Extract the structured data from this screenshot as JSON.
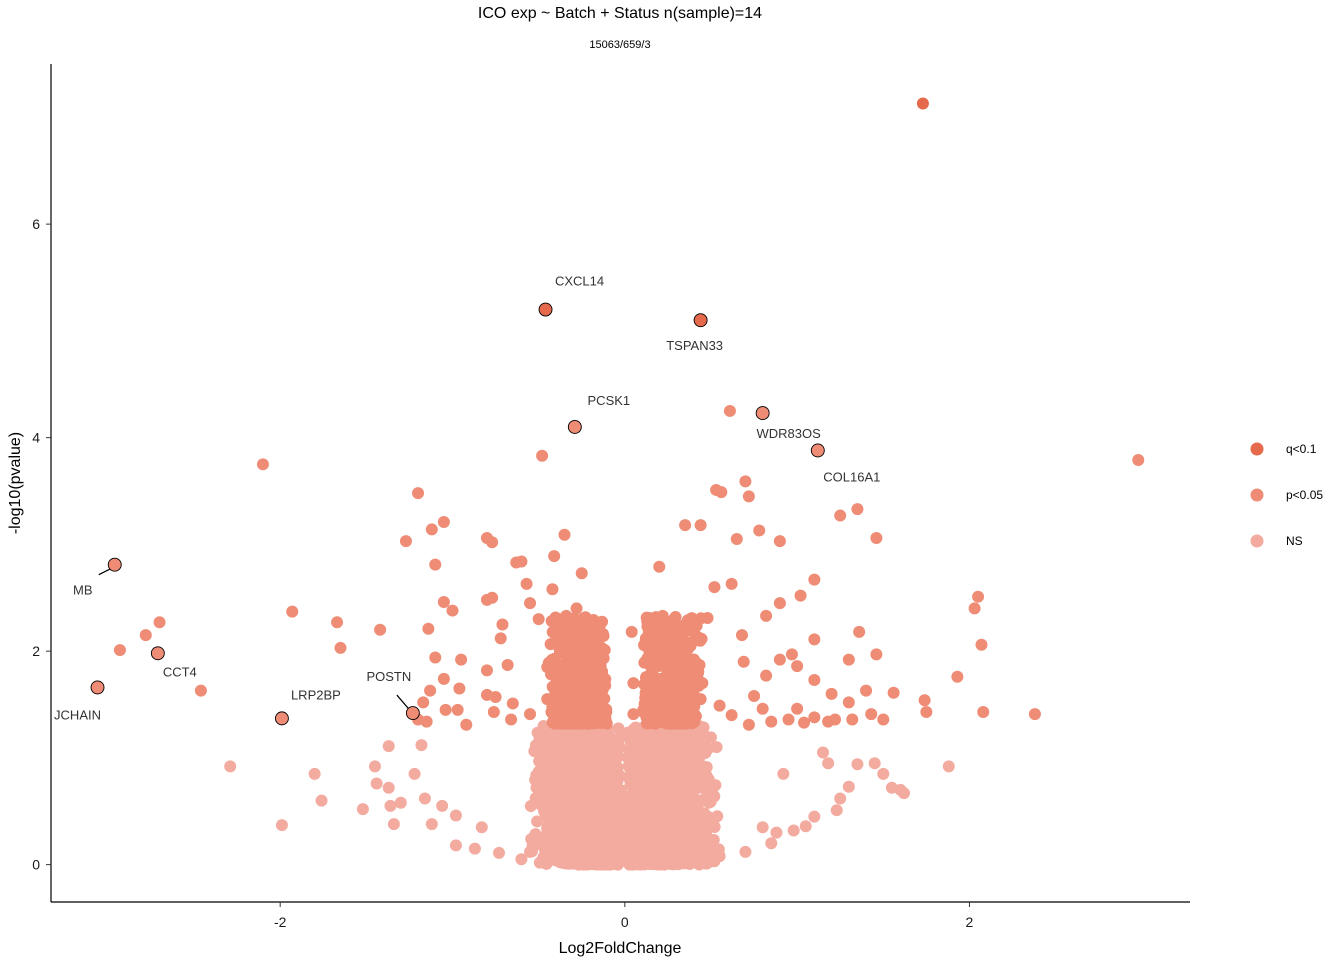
{
  "chart_data": {
    "type": "scatter",
    "title": "ICO exp ~ Batch + Status n(sample)=14",
    "subtitle": "15063/659/3",
    "xlabel": "Log2FoldChange",
    "ylabel": "-log10(pvalue)",
    "xlim": [
      -3.33,
      3.28
    ],
    "ylim": [
      -0.35,
      7.5
    ],
    "x_ticks": [
      -2,
      0,
      2
    ],
    "x_tick_labels": [
      "-2",
      "0",
      "2"
    ],
    "y_ticks": [
      0,
      2,
      4,
      6
    ],
    "y_tick_labels": [
      "0",
      "2",
      "4",
      "6"
    ],
    "grid": false,
    "legend_position": "right",
    "legend": [
      {
        "name": "q<0.1",
        "color": "#e56a4b"
      },
      {
        "name": "p<0.05",
        "color": "#ee8c76"
      },
      {
        "name": "NS",
        "color": "#f3aba0"
      }
    ],
    "series": [
      {
        "name": "q<0.1",
        "color": "#e56a4b",
        "points": [
          [
            1.73,
            7.13
          ]
        ]
      },
      {
        "name": "p<0.05",
        "color": "#ee8c76",
        "points": [
          [
            0.61,
            4.25
          ],
          [
            -0.48,
            3.83
          ],
          [
            -2.1,
            3.75
          ],
          [
            2.98,
            3.79
          ],
          [
            0.7,
            3.59
          ],
          [
            0.53,
            3.51
          ],
          [
            0.56,
            3.49
          ],
          [
            0.72,
            3.45
          ],
          [
            -1.2,
            3.48
          ],
          [
            0.35,
            3.18
          ],
          [
            0.44,
            3.18
          ],
          [
            0.78,
            3.13
          ],
          [
            1.35,
            3.33
          ],
          [
            1.25,
            3.27
          ],
          [
            -1.05,
            3.21
          ],
          [
            -1.12,
            3.14
          ],
          [
            -0.35,
            3.09
          ],
          [
            -0.8,
            3.06
          ],
          [
            -0.77,
            3.02
          ],
          [
            -1.27,
            3.03
          ],
          [
            0.65,
            3.05
          ],
          [
            0.9,
            3.03
          ],
          [
            1.46,
            3.06
          ],
          [
            -0.63,
            2.83
          ],
          [
            -0.6,
            2.84
          ],
          [
            -0.41,
            2.89
          ],
          [
            0.2,
            2.79
          ],
          [
            -1.1,
            2.81
          ],
          [
            -0.25,
            2.73
          ],
          [
            1.1,
            2.67
          ],
          [
            -0.57,
            2.63
          ],
          [
            0.52,
            2.6
          ],
          [
            0.62,
            2.63
          ],
          [
            2.05,
            2.51
          ],
          [
            -0.42,
            2.58
          ],
          [
            -0.77,
            2.5
          ],
          [
            -0.8,
            2.48
          ],
          [
            1.02,
            2.52
          ],
          [
            -1.05,
            2.46
          ],
          [
            -1.0,
            2.38
          ],
          [
            -0.55,
            2.45
          ],
          [
            0.9,
            2.45
          ],
          [
            -0.28,
            2.4
          ],
          [
            2.03,
            2.4
          ],
          [
            -1.93,
            2.37
          ],
          [
            0.82,
            2.33
          ],
          [
            0.48,
            2.31
          ],
          [
            0.22,
            2.33
          ],
          [
            0.13,
            2.28
          ],
          [
            -0.5,
            2.3
          ],
          [
            -0.34,
            2.33
          ],
          [
            -0.71,
            2.25
          ],
          [
            -1.67,
            2.27
          ],
          [
            -2.7,
            2.27
          ],
          [
            -1.14,
            2.21
          ],
          [
            -1.42,
            2.2
          ],
          [
            -0.18,
            2.21
          ],
          [
            0.04,
            2.18
          ],
          [
            1.36,
            2.18
          ],
          [
            -2.78,
            2.15
          ],
          [
            0.68,
            2.15
          ],
          [
            -0.72,
            2.12
          ],
          [
            1.1,
            2.11
          ],
          [
            2.07,
            2.06
          ],
          [
            -1.65,
            2.03
          ],
          [
            -2.93,
            2.01
          ],
          [
            0.97,
            1.97
          ],
          [
            1.46,
            1.97
          ],
          [
            -1.1,
            1.94
          ],
          [
            -0.95,
            1.92
          ],
          [
            0.9,
            1.92
          ],
          [
            1.3,
            1.92
          ],
          [
            -0.68,
            1.87
          ],
          [
            0.69,
            1.9
          ],
          [
            0.15,
            1.86
          ],
          [
            1.0,
            1.86
          ],
          [
            -0.8,
            1.82
          ],
          [
            1.93,
            1.76
          ],
          [
            -1.05,
            1.74
          ],
          [
            0.82,
            1.77
          ],
          [
            -0.3,
            1.75
          ],
          [
            0.05,
            1.7
          ],
          [
            1.1,
            1.73
          ],
          [
            -2.46,
            1.63
          ],
          [
            -0.96,
            1.65
          ],
          [
            -1.13,
            1.63
          ],
          [
            -0.8,
            1.59
          ],
          [
            0.33,
            1.6
          ],
          [
            1.2,
            1.6
          ],
          [
            1.4,
            1.63
          ],
          [
            1.56,
            1.61
          ],
          [
            -0.75,
            1.57
          ],
          [
            -0.45,
            1.55
          ],
          [
            0.44,
            1.55
          ],
          [
            0.75,
            1.58
          ],
          [
            1.3,
            1.52
          ],
          [
            1.74,
            1.54
          ],
          [
            -1.17,
            1.52
          ],
          [
            -0.65,
            1.51
          ],
          [
            0.13,
            1.51
          ],
          [
            0.55,
            1.49
          ],
          [
            0.8,
            1.46
          ],
          [
            1.0,
            1.46
          ],
          [
            2.08,
            1.43
          ],
          [
            1.75,
            1.43
          ],
          [
            2.38,
            1.41
          ],
          [
            -0.97,
            1.45
          ],
          [
            -1.04,
            1.45
          ],
          [
            -0.76,
            1.43
          ],
          [
            -0.55,
            1.41
          ],
          [
            -0.3,
            1.41
          ],
          [
            -0.2,
            1.44
          ],
          [
            0.05,
            1.41
          ],
          [
            0.3,
            1.42
          ],
          [
            0.62,
            1.4
          ],
          [
            1.1,
            1.38
          ],
          [
            1.22,
            1.36
          ],
          [
            1.43,
            1.41
          ],
          [
            -1.15,
            1.34
          ],
          [
            -1.2,
            1.36
          ],
          [
            -0.66,
            1.36
          ],
          [
            0.85,
            1.34
          ],
          [
            0.95,
            1.36
          ],
          [
            1.04,
            1.33
          ],
          [
            1.18,
            1.34
          ],
          [
            1.32,
            1.36
          ],
          [
            1.5,
            1.36
          ],
          [
            -0.92,
            1.31
          ],
          [
            0.72,
            1.31
          ],
          [
            -0.42,
            1.48
          ],
          [
            -0.35,
            1.72
          ],
          [
            -0.25,
            1.9
          ],
          [
            -0.18,
            2.0
          ],
          [
            -0.3,
            1.95
          ],
          [
            0.25,
            1.9
          ],
          [
            0.35,
            1.95
          ],
          [
            0.3,
            2.1
          ],
          [
            0.4,
            1.8
          ],
          [
            0.18,
            1.65
          ],
          [
            0.28,
            1.5
          ],
          [
            0.38,
            1.45
          ],
          [
            -0.38,
            1.62
          ],
          [
            -0.45,
            1.85
          ],
          [
            0.45,
            1.7
          ]
        ]
      },
      {
        "name": "NS",
        "color": "#f3aba0",
        "points": [
          [
            -2.29,
            0.92
          ],
          [
            -1.8,
            0.85
          ],
          [
            -1.76,
            0.6
          ],
          [
            -1.99,
            0.37
          ],
          [
            -1.52,
            0.52
          ],
          [
            -1.45,
            0.92
          ],
          [
            -1.44,
            0.76
          ],
          [
            -1.37,
            1.11
          ],
          [
            -1.37,
            0.72
          ],
          [
            -1.36,
            0.55
          ],
          [
            -1.3,
            0.58
          ],
          [
            -1.34,
            0.38
          ],
          [
            -1.22,
            0.85
          ],
          [
            -1.16,
            0.62
          ],
          [
            -1.12,
            0.38
          ],
          [
            -1.18,
            1.12
          ],
          [
            -1.06,
            0.55
          ],
          [
            -0.98,
            0.46
          ],
          [
            -0.98,
            0.18
          ],
          [
            -0.87,
            0.15
          ],
          [
            -0.83,
            0.35
          ],
          [
            -0.73,
            0.11
          ],
          [
            1.35,
            0.94
          ],
          [
            1.45,
            0.95
          ],
          [
            1.5,
            0.85
          ],
          [
            1.55,
            0.72
          ],
          [
            1.6,
            0.7
          ],
          [
            1.62,
            0.67
          ],
          [
            1.88,
            0.92
          ],
          [
            1.3,
            0.73
          ],
          [
            1.25,
            0.62
          ],
          [
            1.23,
            0.51
          ],
          [
            1.1,
            0.45
          ],
          [
            1.05,
            0.36
          ],
          [
            0.98,
            0.32
          ],
          [
            0.88,
            0.3
          ],
          [
            0.8,
            0.35
          ],
          [
            0.92,
            0.85
          ],
          [
            1.18,
            0.95
          ],
          [
            1.15,
            1.05
          ],
          [
            -0.6,
            0.05
          ],
          [
            -0.4,
            0.04
          ],
          [
            0.4,
            0.05
          ],
          [
            0.55,
            0.08
          ],
          [
            0.7,
            0.12
          ],
          [
            -0.55,
            0.12
          ],
          [
            0.85,
            0.2
          ]
        ]
      }
    ],
    "labeled_points": [
      {
        "label": "CXCL14",
        "x": -0.46,
        "y": 5.2,
        "group": "q<0.1",
        "color": "#e56a4b"
      },
      {
        "label": "TSPAN33",
        "x": 0.44,
        "y": 5.1,
        "group": "q<0.1",
        "color": "#e56a4b"
      },
      {
        "label": "PCSK1",
        "x": -0.29,
        "y": 4.1,
        "group": "p<0.05",
        "color": "#ee8c76"
      },
      {
        "label": "WDR83OS",
        "x": 0.8,
        "y": 4.23,
        "group": "p<0.05",
        "color": "#ee8c76"
      },
      {
        "label": "COL16A1",
        "x": 1.12,
        "y": 3.88,
        "group": "p<0.05",
        "color": "#ee8c76"
      },
      {
        "label": "MB",
        "x": -2.96,
        "y": 2.81,
        "group": "p<0.05",
        "color": "#ee8c76"
      },
      {
        "label": "CCT4",
        "x": -2.71,
        "y": 1.98,
        "group": "p<0.05",
        "color": "#ee8c76"
      },
      {
        "label": "JCHAIN",
        "x": -3.06,
        "y": 1.66,
        "group": "p<0.05",
        "color": "#ee8c76"
      },
      {
        "label": "LRP2BP",
        "x": -1.99,
        "y": 1.37,
        "group": "p<0.05",
        "color": "#ee8c76"
      },
      {
        "label": "POSTN",
        "x": -1.23,
        "y": 1.42,
        "group": "p<0.05",
        "color": "#ee8c76"
      }
    ]
  }
}
